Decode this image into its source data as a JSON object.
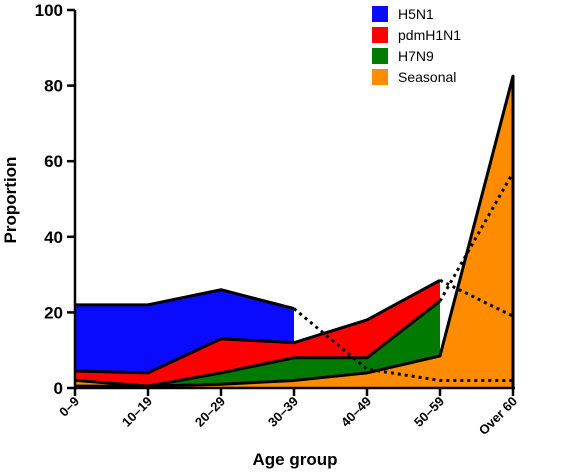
{
  "chart_data": {
    "type": "area",
    "categories": [
      "0–9",
      "10–19",
      "20–29",
      "30–39",
      "40–49",
      "50–59",
      "Over 60"
    ],
    "xlabel": "Age group",
    "ylabel": "Proportion",
    "ylim": [
      0,
      100
    ],
    "yticks": [
      0,
      20,
      40,
      60,
      80,
      100
    ],
    "grid": false,
    "legend_position": "top-right",
    "series": [
      {
        "name": "H5N1",
        "color": "#0a0aff",
        "values": [
          22,
          22,
          26,
          21,
          5,
          2,
          2
        ],
        "dashed_from_index": 3
      },
      {
        "name": "pdmH1N1",
        "color": "#ff0000",
        "values": [
          4.5,
          4,
          13,
          12,
          18,
          28.5,
          19
        ],
        "dashed_from_index": 5
      },
      {
        "name": "H7N9",
        "color": "#007a00",
        "values": [
          0.5,
          0.5,
          4,
          8,
          8,
          23,
          57
        ],
        "dashed_from_index": 5
      },
      {
        "name": "Seasonal",
        "color": "#ff8c00",
        "values": [
          2,
          0.5,
          1,
          2,
          4,
          8.5,
          82.5
        ],
        "dashed_from_index": null
      }
    ]
  }
}
